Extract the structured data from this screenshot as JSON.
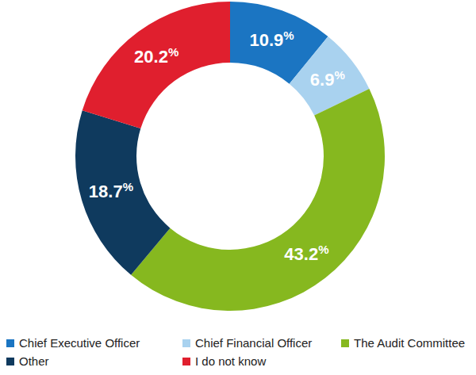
{
  "chart_data": {
    "type": "pie",
    "categories": [
      "Chief Executive Officer",
      "Chief Financial Officer",
      "The Audit Committee",
      "Other",
      "I do not know"
    ],
    "values": [
      10.9,
      6.9,
      43.2,
      18.7,
      20.2
    ],
    "value_labels": [
      "10.9%",
      "6.9%",
      "43.2%",
      "18.7%",
      "20.2%"
    ],
    "colors": [
      "#1b75c2",
      "#a9d2ef",
      "#86b81f",
      "#0f3a5e",
      "#e01f2e"
    ],
    "data_labels": true,
    "legend": "bottom"
  }
}
